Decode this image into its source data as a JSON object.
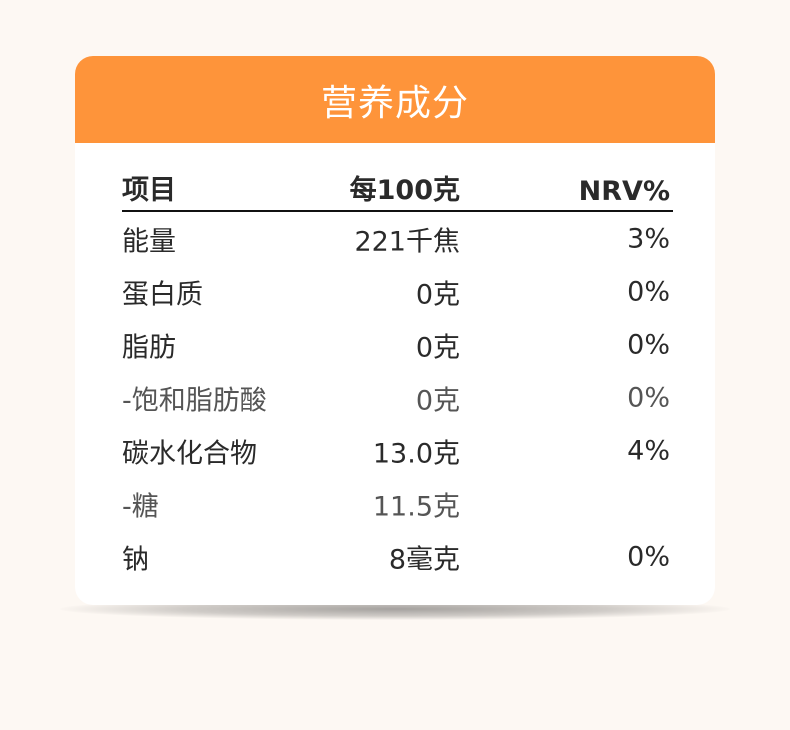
{
  "title": "营养成分",
  "columns": [
    "项目",
    "每100克",
    "NRV%"
  ],
  "rows": [
    {
      "item": "能量",
      "amount": "221千焦",
      "nrv": "3%",
      "sub": false
    },
    {
      "item": "蛋白质",
      "amount": "0克",
      "nrv": "0%",
      "sub": false
    },
    {
      "item": "脂肪",
      "amount": "0克",
      "nrv": "0%",
      "sub": false
    },
    {
      "item": "-饱和脂肪酸",
      "amount": "0克",
      "nrv": "0%",
      "sub": true
    },
    {
      "item": "碳水化合物",
      "amount": "13.0克",
      "nrv": "4%",
      "sub": false
    },
    {
      "item": "-糖",
      "amount": "11.5克",
      "nrv": "",
      "sub": true
    },
    {
      "item": "钠",
      "amount": "8毫克",
      "nrv": "0%",
      "sub": false
    }
  ],
  "colors": {
    "header": "#fe943a",
    "background": "#fdf8f3"
  }
}
